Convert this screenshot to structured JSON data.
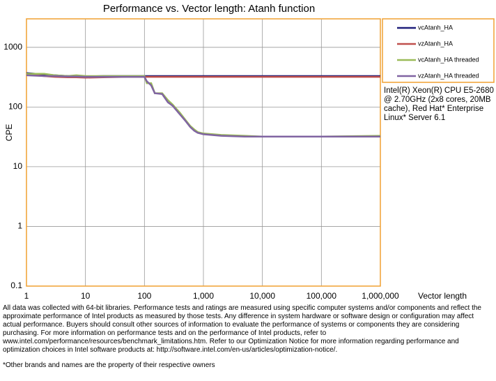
{
  "chart_data": {
    "type": "line",
    "title": "Performance vs. Vector length: Atanh function",
    "x_label": "Vector length",
    "y_label": "CPE",
    "log_x": true,
    "log_y": true,
    "grid": true,
    "x": [
      1,
      2,
      3,
      5,
      7,
      10,
      20,
      50,
      100,
      110,
      130,
      150,
      200,
      250,
      300,
      400,
      500,
      600,
      700,
      800,
      1000,
      2000,
      5000,
      10000,
      100000,
      1000000
    ],
    "series": [
      {
        "name": "vcAtanh_HA",
        "color": "#1f1f7a",
        "values": [
          370,
          350,
          340,
          330,
          330,
          325,
          330,
          330,
          330,
          330,
          330,
          330,
          330,
          330,
          330,
          330,
          330,
          330,
          330,
          330,
          330,
          330,
          330,
          330,
          330,
          330
        ]
      },
      {
        "name": "vzAtanh_HA",
        "color": "#c0504d",
        "values": [
          350,
          330,
          320,
          315,
          315,
          310,
          315,
          320,
          320,
          320,
          320,
          320,
          320,
          320,
          320,
          320,
          320,
          320,
          320,
          320,
          320,
          320,
          320,
          320,
          320,
          320
        ]
      },
      {
        "name": "vcAtanh_HA threaded",
        "color": "#9bbb59",
        "values": [
          360,
          360,
          340,
          330,
          340,
          330,
          330,
          330,
          330,
          250,
          250,
          170,
          170,
          130,
          110,
          80,
          60,
          48,
          42,
          38,
          36,
          34,
          33,
          32,
          32,
          33
        ]
      },
      {
        "name": "vzAtanh_HA threaded",
        "color": "#8064a2",
        "values": [
          340,
          330,
          330,
          325,
          325,
          320,
          320,
          320,
          320,
          270,
          230,
          170,
          165,
          120,
          105,
          75,
          58,
          46,
          40,
          37,
          35,
          33,
          32,
          32,
          32,
          32
        ]
      }
    ],
    "xlim": [
      1,
      1000000
    ],
    "xticks": [
      1,
      10,
      100,
      {
        "value": 1000,
        "label": "1,000"
      },
      {
        "value": 10000,
        "label": "10,000"
      },
      {
        "value": 100000,
        "label": "100,000"
      },
      {
        "value": 1000000,
        "label": "1,000,000"
      }
    ],
    "ylim": [
      0.1,
      3000
    ],
    "yticks": [
      0.1,
      1,
      10,
      100,
      1000
    ],
    "annotation": "Intel(R) Xeon(R) CPU E5-2680 @ 2.70GHz (2x8 cores, 20MB cache), Red Hat* Enterprise Linux* Server 6.1",
    "footnote": "All data was collected with 64-bit libraries. Performance tests and ratings are measured using specific computer systems and/or components and reflect the approximate performance of Intel products as measured by those tests. Any difference in system hardware or software design or configuration may affect actual performance. Buyers should consult other sources of information to evaluate the performance of systems or components they are considering purchasing. For more information on performance tests and on the performance of Intel products, refer to www.intel.com/performance/resources/benchmark_limitations.htm. Refer to our Optimization Notice for more information regarding performance and optimization choices in Intel software products at: http://software.intel.com/en-us/articles/optimization-notice/.",
    "footnote2": "*Other brands and names are the property of their respective owners"
  }
}
